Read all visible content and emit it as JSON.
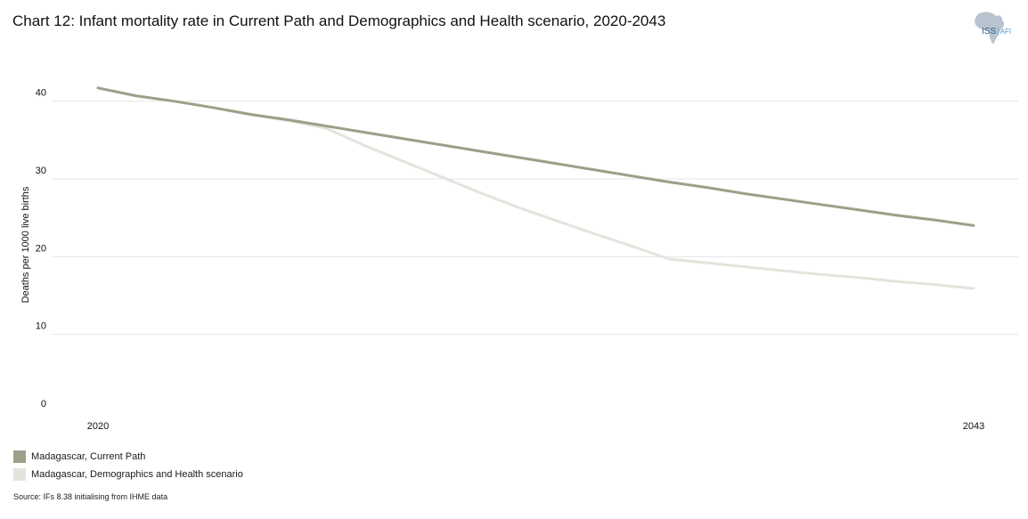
{
  "title": "Chart 12: Infant mortality rate in Current Path and Demographics and Health scenario, 2020-2043",
  "logo": {
    "text_main": "ISS",
    "text_sub": "AFI"
  },
  "source": "Source: IFs 8.38 initialising from IHME data",
  "colors": {
    "current_path": "#9aa188",
    "scenario": "#e3e4dc",
    "gridline": "#e6e6e6",
    "logo_map": "#b8c3d0"
  },
  "chart_data": {
    "type": "line",
    "title": "Chart 12: Infant mortality rate in Current Path and Demographics and Health scenario, 2020-2043",
    "xlabel": "",
    "ylabel": "Deaths per 1000 live births",
    "xlim": [
      2020,
      2043
    ],
    "ylim": [
      0,
      45
    ],
    "yticks": [
      0,
      10,
      20,
      30,
      40
    ],
    "xticks": [
      2020,
      2043
    ],
    "grid": true,
    "legend_position": "bottom-left",
    "series": [
      {
        "name": "Madagascar, Current Path",
        "x": [
          2020,
          2021,
          2022,
          2023,
          2024,
          2025,
          2026,
          2027,
          2028,
          2029,
          2030,
          2031,
          2032,
          2033,
          2034,
          2035,
          2036,
          2037,
          2038,
          2039,
          2040,
          2041,
          2042,
          2043
        ],
        "values": [
          41.7,
          40.7,
          40.0,
          39.2,
          38.3,
          37.6,
          36.8,
          36.0,
          35.2,
          34.4,
          33.6,
          32.8,
          32.0,
          31.2,
          30.4,
          29.6,
          28.9,
          28.1,
          27.4,
          26.7,
          26.0,
          25.3,
          24.7,
          24.0
        ]
      },
      {
        "name": "Madagascar, Demographics and Health scenario",
        "x": [
          2020,
          2021,
          2022,
          2023,
          2024,
          2025,
          2026,
          2027,
          2028,
          2029,
          2030,
          2031,
          2032,
          2033,
          2034,
          2035,
          2036,
          2037,
          2038,
          2039,
          2040,
          2041,
          2042,
          2043
        ],
        "values": [
          41.7,
          40.7,
          40.0,
          39.2,
          38.3,
          37.5,
          36.5,
          34.3,
          32.3,
          30.3,
          28.3,
          26.4,
          24.7,
          23.0,
          21.4,
          19.7,
          19.2,
          18.7,
          18.2,
          17.7,
          17.3,
          16.8,
          16.4,
          15.9
        ]
      }
    ]
  }
}
